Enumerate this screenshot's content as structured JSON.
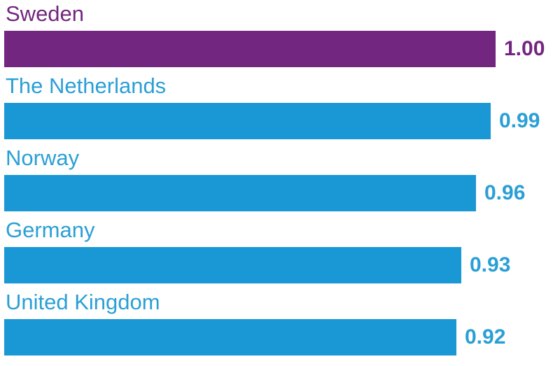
{
  "chart_data": {
    "type": "bar",
    "orientation": "horizontal",
    "categories": [
      "Sweden",
      "The Netherlands",
      "Norway",
      "Germany",
      "United Kingdom"
    ],
    "values": [
      1.0,
      0.99,
      0.96,
      0.93,
      0.92
    ],
    "value_labels": [
      "1.00",
      "0.99",
      "0.96",
      "0.93",
      "0.92"
    ],
    "xlim": [
      0,
      1.0
    ],
    "grid": false,
    "legend": "none",
    "colors": {
      "highlight": "#72267f",
      "default": "#1a97d5",
      "label_default": "#2a9fd6",
      "highlight_label": "#72267f"
    },
    "highlight_index": 0
  }
}
